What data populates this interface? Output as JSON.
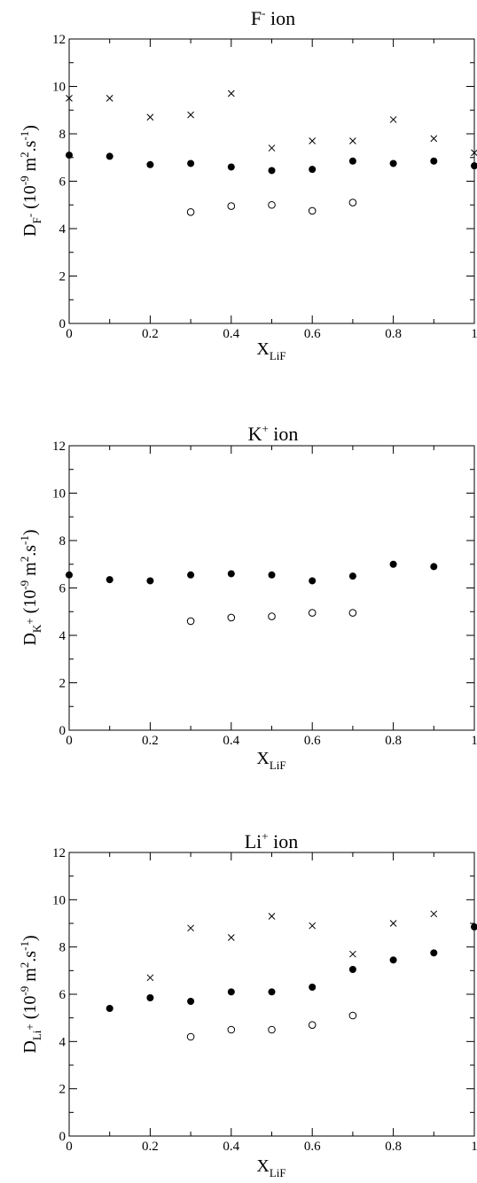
{
  "chart_data": [
    {
      "type": "scatter",
      "title": {
        "base": "F",
        "sup": "-",
        "rest": " ion"
      },
      "xlabel": {
        "base": "X",
        "sub": "LiF"
      },
      "ylabel": {
        "main": "D",
        "sub": "F",
        "subsup": "-",
        "paren_open": " (10",
        "exp1": "-9",
        "mid": " m",
        "exp2": "2",
        "mid2": ".s",
        "exp3": "-1",
        "paren_close": ")"
      },
      "xlim": [
        0,
        1
      ],
      "ylim": [
        0,
        12
      ],
      "xticks": [
        "0",
        "0.2",
        "0.4",
        "0.6",
        "0.8",
        "1"
      ],
      "yticks": [
        "0",
        "2",
        "4",
        "6",
        "8",
        "10",
        "12"
      ],
      "series": [
        {
          "marker": "cross",
          "x": [
            0,
            0.1,
            0.2,
            0.3,
            0.4,
            0.5,
            0.6,
            0.7,
            0.8,
            0.9,
            1.0
          ],
          "y": [
            9.5,
            9.5,
            8.7,
            8.8,
            9.7,
            7.4,
            7.7,
            7.7,
            8.6,
            7.8,
            7.2
          ]
        },
        {
          "marker": "filled-circle",
          "x": [
            0,
            0.1,
            0.2,
            0.3,
            0.4,
            0.5,
            0.6,
            0.7,
            0.8,
            0.9,
            1.0
          ],
          "y": [
            7.1,
            7.05,
            6.7,
            6.75,
            6.6,
            6.45,
            6.5,
            6.85,
            6.75,
            6.85,
            6.65
          ]
        },
        {
          "marker": "open-circle",
          "x": [
            0.3,
            0.4,
            0.5,
            0.6,
            0.7
          ],
          "y": [
            4.7,
            4.95,
            5.0,
            4.75,
            5.1
          ]
        }
      ]
    },
    {
      "type": "scatter",
      "title": {
        "base": "K",
        "sup": "+",
        "rest": " ion"
      },
      "xlabel": {
        "base": "X",
        "sub": "LiF"
      },
      "ylabel": {
        "main": "D",
        "sub": "K",
        "subsup": "+",
        "paren_open": " (10",
        "exp1": "-9",
        "mid": " m",
        "exp2": "2",
        "mid2": ".s",
        "exp3": "-1",
        "paren_close": ")"
      },
      "xlim": [
        0,
        1
      ],
      "ylim": [
        0,
        12
      ],
      "xticks": [
        "0",
        "0.2",
        "0.4",
        "0.6",
        "0.8",
        "1"
      ],
      "yticks": [
        "0",
        "2",
        "4",
        "6",
        "8",
        "10",
        "12"
      ],
      "series": [
        {
          "marker": "filled-circle",
          "x": [
            0,
            0.1,
            0.2,
            0.3,
            0.4,
            0.5,
            0.6,
            0.7,
            0.8,
            0.9
          ],
          "y": [
            6.55,
            6.35,
            6.3,
            6.55,
            6.6,
            6.55,
            6.3,
            6.5,
            7.0,
            6.9
          ]
        },
        {
          "marker": "open-circle",
          "x": [
            0.3,
            0.4,
            0.5,
            0.6,
            0.7
          ],
          "y": [
            4.6,
            4.75,
            4.8,
            4.95,
            4.95
          ]
        }
      ]
    },
    {
      "type": "scatter",
      "title": {
        "base": "Li",
        "sup": "+",
        "rest": " ion"
      },
      "xlabel": {
        "base": "X",
        "sub": "LiF"
      },
      "ylabel": {
        "main": "D",
        "sub": "Li",
        "subsup": "+",
        "paren_open": " (10",
        "exp1": "-9",
        "mid": " m",
        "exp2": "2",
        "mid2": ".s",
        "exp3": "-1",
        "paren_close": ")"
      },
      "xlim": [
        0,
        1
      ],
      "ylim": [
        0,
        12
      ],
      "xticks": [
        "0",
        "0.2",
        "0.4",
        "0.6",
        "0.8",
        "1"
      ],
      "yticks": [
        "0",
        "2",
        "4",
        "6",
        "8",
        "10",
        "12"
      ],
      "series": [
        {
          "marker": "cross",
          "x": [
            0.2,
            0.3,
            0.4,
            0.5,
            0.6,
            0.7,
            0.8,
            0.9
          ],
          "y": [
            6.7,
            8.8,
            8.4,
            9.3,
            8.9,
            7.7,
            9.0,
            9.4
          ]
        },
        {
          "marker": "filled-circle",
          "x": [
            0.1,
            0.2,
            0.3,
            0.4,
            0.5,
            0.6,
            0.7,
            0.8,
            0.9,
            1.0
          ],
          "y": [
            5.4,
            5.85,
            5.7,
            6.1,
            6.1,
            6.3,
            7.05,
            7.45,
            7.75,
            8.85
          ]
        },
        {
          "marker": "open-circle",
          "x": [
            0.3,
            0.4,
            0.5,
            0.6,
            0.7
          ],
          "y": [
            4.2,
            4.5,
            4.5,
            4.7,
            5.1
          ]
        }
      ]
    }
  ]
}
